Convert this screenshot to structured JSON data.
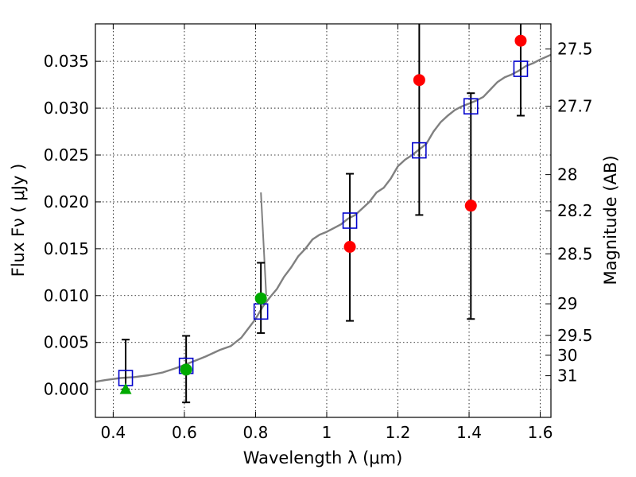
{
  "chart_data": {
    "type": "scatter",
    "xlabel": "Wavelength  λ (μm)",
    "ylabel": "Flux  Fν  ( μJy )",
    "y2label": "Magnitude (AB)",
    "xlim": [
      0.35,
      1.63
    ],
    "ylim": [
      -0.003,
      0.039
    ],
    "xticks": [
      0.4,
      0.6,
      0.8,
      1.0,
      1.2,
      1.4,
      1.6
    ],
    "xtick_labels": [
      "0.4",
      "0.6",
      "0.8",
      "1",
      "1.2",
      "1.4",
      "1.6"
    ],
    "yticks": [
      0.0,
      0.005,
      0.01,
      0.015,
      0.02,
      0.025,
      0.03,
      0.035
    ],
    "ytick_labels": [
      "0.000",
      "0.005",
      "0.010",
      "0.015",
      "0.020",
      "0.025",
      "0.030",
      "0.035"
    ],
    "y2ticks": [
      27.5,
      27.7,
      28,
      28.2,
      28.5,
      29,
      29.5,
      30,
      31
    ],
    "y2tick_labels": [
      "27.5",
      "27.7",
      "28",
      "28.2",
      "28.5",
      "29",
      "29.5",
      "30",
      "31"
    ],
    "grid": true,
    "colors": {
      "spectrum": "#808080",
      "model_squares": "#0000cc",
      "red_points": "#ff0000",
      "green_points": "#00aa00",
      "errorbars": "#000000"
    },
    "spectrum": [
      [
        0.35,
        0.0008
      ],
      [
        0.38,
        0.001
      ],
      [
        0.42,
        0.0012
      ],
      [
        0.46,
        0.0013
      ],
      [
        0.5,
        0.0015
      ],
      [
        0.54,
        0.0018
      ],
      [
        0.58,
        0.0023
      ],
      [
        0.62,
        0.0029
      ],
      [
        0.66,
        0.0035
      ],
      [
        0.7,
        0.0042
      ],
      [
        0.73,
        0.0046
      ],
      [
        0.76,
        0.0055
      ],
      [
        0.78,
        0.0065
      ],
      [
        0.8,
        0.0075
      ],
      [
        0.82,
        0.0088
      ],
      [
        0.84,
        0.0098
      ],
      [
        0.86,
        0.0107
      ],
      [
        0.88,
        0.012
      ],
      [
        0.9,
        0.013
      ],
      [
        0.92,
        0.0142
      ],
      [
        0.94,
        0.015
      ],
      [
        0.96,
        0.016
      ],
      [
        0.98,
        0.0165
      ],
      [
        1.0,
        0.0168
      ],
      [
        1.02,
        0.0172
      ],
      [
        1.04,
        0.0176
      ],
      [
        1.06,
        0.0182
      ],
      [
        1.08,
        0.0186
      ],
      [
        1.1,
        0.0193
      ],
      [
        1.12,
        0.02
      ],
      [
        1.14,
        0.021
      ],
      [
        1.16,
        0.0215
      ],
      [
        1.18,
        0.0225
      ],
      [
        1.2,
        0.0238
      ],
      [
        1.22,
        0.0245
      ],
      [
        1.24,
        0.025
      ],
      [
        1.26,
        0.0256
      ],
      [
        1.28,
        0.0262
      ],
      [
        1.3,
        0.0275
      ],
      [
        1.32,
        0.0285
      ],
      [
        1.34,
        0.0292
      ],
      [
        1.36,
        0.0298
      ],
      [
        1.38,
        0.0302
      ],
      [
        1.4,
        0.0305
      ],
      [
        1.42,
        0.0308
      ],
      [
        1.44,
        0.0312
      ],
      [
        1.46,
        0.032
      ],
      [
        1.48,
        0.0328
      ],
      [
        1.5,
        0.0333
      ],
      [
        1.52,
        0.0336
      ],
      [
        1.54,
        0.034
      ],
      [
        1.56,
        0.0345
      ],
      [
        1.58,
        0.0348
      ],
      [
        1.6,
        0.0352
      ],
      [
        1.63,
        0.0357
      ]
    ],
    "spectrum_spike": [
      [
        0.815,
        0.021
      ],
      [
        0.83,
        0.01
      ]
    ],
    "model_squares": [
      {
        "x": 0.435,
        "y": 0.0012
      },
      {
        "x": 0.605,
        "y": 0.0025
      },
      {
        "x": 0.815,
        "y": 0.0083
      },
      {
        "x": 1.065,
        "y": 0.018
      },
      {
        "x": 1.26,
        "y": 0.0255
      },
      {
        "x": 1.405,
        "y": 0.0302
      },
      {
        "x": 1.545,
        "y": 0.0342
      }
    ],
    "red_points": [
      {
        "x": 1.065,
        "y": 0.0152,
        "ylo": 0.0073,
        "yhi": 0.023
      },
      {
        "x": 1.26,
        "y": 0.033,
        "ylo": 0.0186,
        "yhi": 0.039
      },
      {
        "x": 1.405,
        "y": 0.0196,
        "ylo": 0.0075,
        "yhi": 0.0316
      },
      {
        "x": 1.545,
        "y": 0.0372,
        "ylo": 0.0292,
        "yhi": 0.039
      }
    ],
    "green_points": [
      {
        "x": 0.605,
        "y": 0.0021,
        "ylo": -0.0014,
        "yhi": 0.0057
      },
      {
        "x": 0.815,
        "y": 0.0097,
        "ylo": 0.006,
        "yhi": 0.0135
      }
    ],
    "green_triangles": [
      {
        "x": 0.435,
        "y": 0.0,
        "ylo": 0.0,
        "yhi": 0.0053
      }
    ]
  }
}
